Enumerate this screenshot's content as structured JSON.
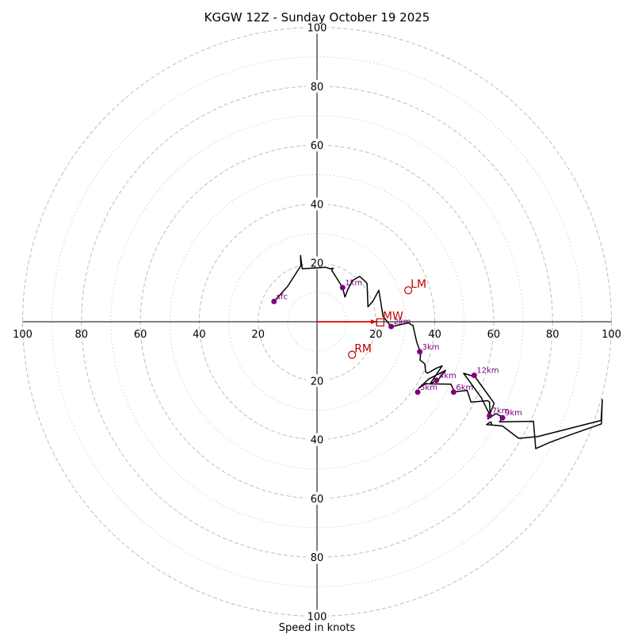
{
  "chart_data": {
    "type": "hodograph",
    "title": "KGGW 12Z - Sunday October 19 2025",
    "xlabel": "Speed in knots",
    "units": "knots",
    "range": [
      -100,
      100
    ],
    "major_rings": [
      20,
      40,
      60,
      80,
      100
    ],
    "minor_rings": [
      10,
      30,
      50,
      70,
      90
    ],
    "x_tick_labels": [
      {
        "value": -100,
        "text": "100"
      },
      {
        "value": -80,
        "text": "80"
      },
      {
        "value": -60,
        "text": "60"
      },
      {
        "value": -40,
        "text": "40"
      },
      {
        "value": -20,
        "text": "20"
      },
      {
        "value": 20,
        "text": "20"
      },
      {
        "value": 40,
        "text": "40"
      },
      {
        "value": 60,
        "text": "60"
      },
      {
        "value": 80,
        "text": "80"
      },
      {
        "value": 100,
        "text": "100"
      }
    ],
    "y_tick_labels": [
      {
        "value": 100,
        "text": "100"
      },
      {
        "value": 80,
        "text": "80"
      },
      {
        "value": 60,
        "text": "60"
      },
      {
        "value": 40,
        "text": "40"
      },
      {
        "value": 20,
        "text": "20"
      },
      {
        "value": -20,
        "text": "20"
      },
      {
        "value": -40,
        "text": "40"
      },
      {
        "value": -60,
        "text": "60"
      },
      {
        "value": -80,
        "text": "80"
      },
      {
        "value": -100,
        "text": "100"
      }
    ],
    "trace_color": "#000000",
    "trace": [
      [
        -14.6,
        6.9
      ],
      [
        -10,
        12
      ],
      [
        -5.5,
        19
      ],
      [
        -5.6,
        22.5
      ],
      [
        -5,
        18
      ],
      [
        3,
        18.5
      ],
      [
        4.5,
        18
      ],
      [
        5.5,
        18.2
      ],
      [
        5,
        17.5
      ],
      [
        8.7,
        11.6
      ],
      [
        9.5,
        8.4
      ],
      [
        10.5,
        11
      ],
      [
        12,
        14
      ],
      [
        14.5,
        15.4
      ],
      [
        16.2,
        13.9
      ],
      [
        17,
        13
      ],
      [
        17.3,
        5.1
      ],
      [
        19,
        7
      ],
      [
        21,
        10.7
      ],
      [
        21.6,
        7.2
      ],
      [
        22.4,
        1.9
      ],
      [
        23.5,
        0.5
      ],
      [
        25.1,
        -1.5
      ],
      [
        26,
        -1.5
      ],
      [
        29,
        -0.8
      ],
      [
        31,
        -0.4
      ],
      [
        32.6,
        -1.3
      ],
      [
        33.9,
        -7
      ],
      [
        35.2,
        -10.5
      ],
      [
        35,
        -13
      ],
      [
        36.6,
        -14.3
      ],
      [
        36.9,
        -17
      ],
      [
        37.2,
        -17.2
      ],
      [
        37.5,
        -17.5
      ],
      [
        40.5,
        -15.8
      ],
      [
        42.5,
        -15
      ],
      [
        38.5,
        -21
      ],
      [
        41.1,
        -19.8
      ],
      [
        43.7,
        -16.5
      ],
      [
        38,
        -19.4
      ],
      [
        34.5,
        -22.6
      ],
      [
        37,
        -21
      ],
      [
        38,
        -21.1
      ],
      [
        45.5,
        -21.2
      ],
      [
        46.7,
        -23.8
      ],
      [
        51,
        -23.3
      ],
      [
        52.3,
        -27.3
      ],
      [
        58,
        -26.8
      ],
      [
        58.6,
        -27.3
      ],
      [
        58.8,
        -31.8
      ],
      [
        55.8,
        -25.8
      ],
      [
        49.8,
        -17.5
      ],
      [
        53.7,
        -18.7
      ],
      [
        60.2,
        -27.7
      ],
      [
        58,
        -33
      ],
      [
        60.8,
        -31.2
      ],
      [
        63.2,
        -32.5
      ],
      [
        62,
        -34
      ],
      [
        73.5,
        -33.8
      ],
      [
        74.3,
        -43.1
      ],
      [
        79,
        -41
      ],
      [
        86,
        -38.4
      ],
      [
        96.6,
        -34.7
      ],
      [
        96.9,
        -26.4
      ],
      [
        96.5,
        -33.5
      ],
      [
        75,
        -39
      ],
      [
        68.5,
        -39.6
      ],
      [
        63,
        -35.4
      ],
      [
        57.6,
        -34.9
      ],
      [
        59,
        -34
      ],
      [
        59.5,
        -35.2
      ]
    ],
    "height_markers": [
      {
        "label": "sfc",
        "u": -14.6,
        "v": 6.9
      },
      {
        "label": "1km",
        "u": 8.7,
        "v": 11.6
      },
      {
        "label": "2km",
        "u": 25.2,
        "v": -1.6
      },
      {
        "label": "3km",
        "u": 34.9,
        "v": -10.2
      },
      {
        "label": "4km",
        "u": 40.6,
        "v": -19.9
      },
      {
        "label": "5km",
        "u": 34.2,
        "v": -23.9
      },
      {
        "label": "6km",
        "u": 46.4,
        "v": -23.9
      },
      {
        "label": "7km",
        "u": 58.6,
        "v": -31.9
      },
      {
        "label": "9km",
        "u": 63,
        "v": -32.6
      },
      {
        "label": "12km",
        "u": 53.4,
        "v": -18.2
      }
    ],
    "height_color": "#800080",
    "storm_motions": [
      {
        "label": "LM",
        "u": 31,
        "v": 10.7,
        "symbol": "circle"
      },
      {
        "label": "RM",
        "u": 11.9,
        "v": -11.2,
        "symbol": "circle"
      },
      {
        "label": "MW",
        "u": 21.5,
        "v": -0.2,
        "symbol": "square"
      }
    ],
    "motion_color": "#c00000",
    "shear_vector": {
      "from": [
        0,
        0
      ],
      "to": [
        20.2,
        0
      ],
      "color": "#e00000"
    }
  }
}
